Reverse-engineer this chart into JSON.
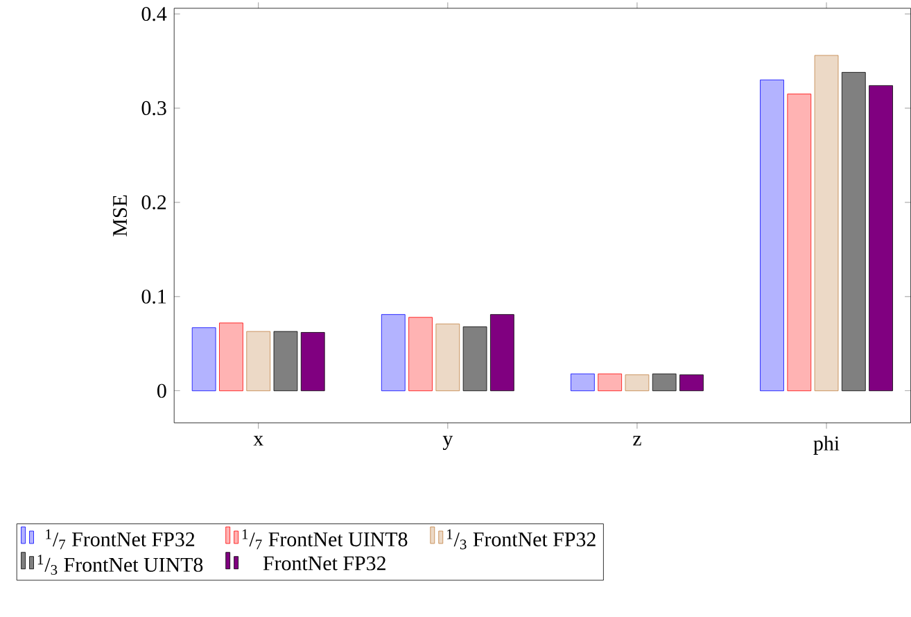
{
  "chart_data": {
    "type": "bar",
    "ylabel": "MSE",
    "categories": [
      "x",
      "y",
      "z",
      "phi"
    ],
    "ylim": [
      -0.034,
      0.406
    ],
    "yticks": [
      0,
      0.1,
      0.2,
      0.3,
      0.4
    ],
    "legend": "bottom",
    "series": [
      {
        "name": "$^{1}$/$_{7}$ FrontNet FP32",
        "color": "#b3b3ff",
        "values": [
          0.067,
          0.081,
          0.018,
          0.33
        ]
      },
      {
        "name": "$^{1}$/$_{7}$ FrontNet UINT8",
        "color": "#ffb3b3",
        "values": [
          0.072,
          0.078,
          0.018,
          0.315
        ]
      },
      {
        "name": "$^{1}$/$_{3}$ FrontNet FP32",
        "color": "#ecd9c6",
        "values": [
          0.063,
          0.071,
          0.017,
          0.356
        ]
      },
      {
        "name": "$^{1}$/$_{3}$ FrontNet UINT8",
        "color": "#808080",
        "values": [
          0.063,
          0.068,
          0.018,
          0.338
        ]
      },
      {
        "name": "FrontNet FP32",
        "color": "#800080",
        "values": [
          0.062,
          0.081,
          0.017,
          0.324
        ]
      }
    ]
  }
}
